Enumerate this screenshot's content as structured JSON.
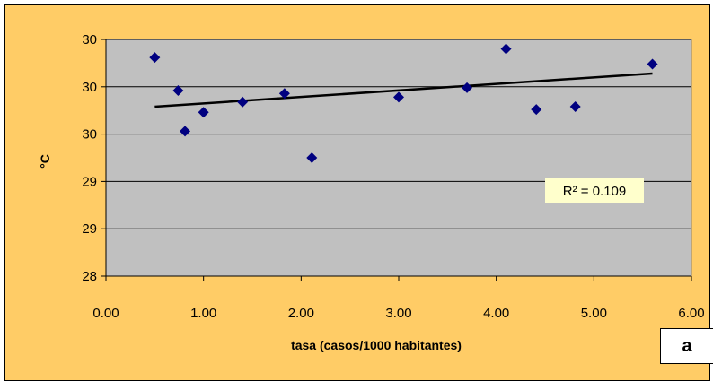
{
  "chart_data": {
    "type": "scatter",
    "xlabel": "tasa (casos/1000 habitantes)",
    "ylabel": "°C",
    "xlim": [
      0,
      6
    ],
    "ylim": [
      28,
      30.5
    ],
    "x_tick_values": [
      0,
      1,
      2,
      3,
      4,
      5,
      6
    ],
    "x_tick_labels": [
      "0.00",
      "1.00",
      "2.00",
      "3.00",
      "4.00",
      "5.00",
      "6.00"
    ],
    "y_tick_values": [
      28,
      28.5,
      29,
      29.5,
      30,
      30.5
    ],
    "y_tick_labels": [
      "28",
      "29",
      "29",
      "30",
      "30",
      "30"
    ],
    "grid": true,
    "plot_background": "#C0C0C0",
    "frame_color": "#FFCC66",
    "marker_color": "#000080",
    "points": [
      {
        "x": 0.5,
        "y": 30.31
      },
      {
        "x": 0.74,
        "y": 29.96
      },
      {
        "x": 0.81,
        "y": 29.53
      },
      {
        "x": 1.0,
        "y": 29.73
      },
      {
        "x": 1.4,
        "y": 29.84
      },
      {
        "x": 1.83,
        "y": 29.93
      },
      {
        "x": 2.11,
        "y": 29.25
      },
      {
        "x": 3.0,
        "y": 29.89
      },
      {
        "x": 3.7,
        "y": 29.99
      },
      {
        "x": 4.1,
        "y": 30.4
      },
      {
        "x": 4.41,
        "y": 29.76
      },
      {
        "x": 4.81,
        "y": 29.79
      },
      {
        "x": 5.6,
        "y": 30.24
      }
    ],
    "trendline": {
      "x": [
        0.5,
        5.6
      ],
      "y": [
        29.79,
        30.14
      ]
    },
    "annotation": "R² = 0.109",
    "annotation_bg": "#FFFFCC"
  },
  "panel_label": "a"
}
